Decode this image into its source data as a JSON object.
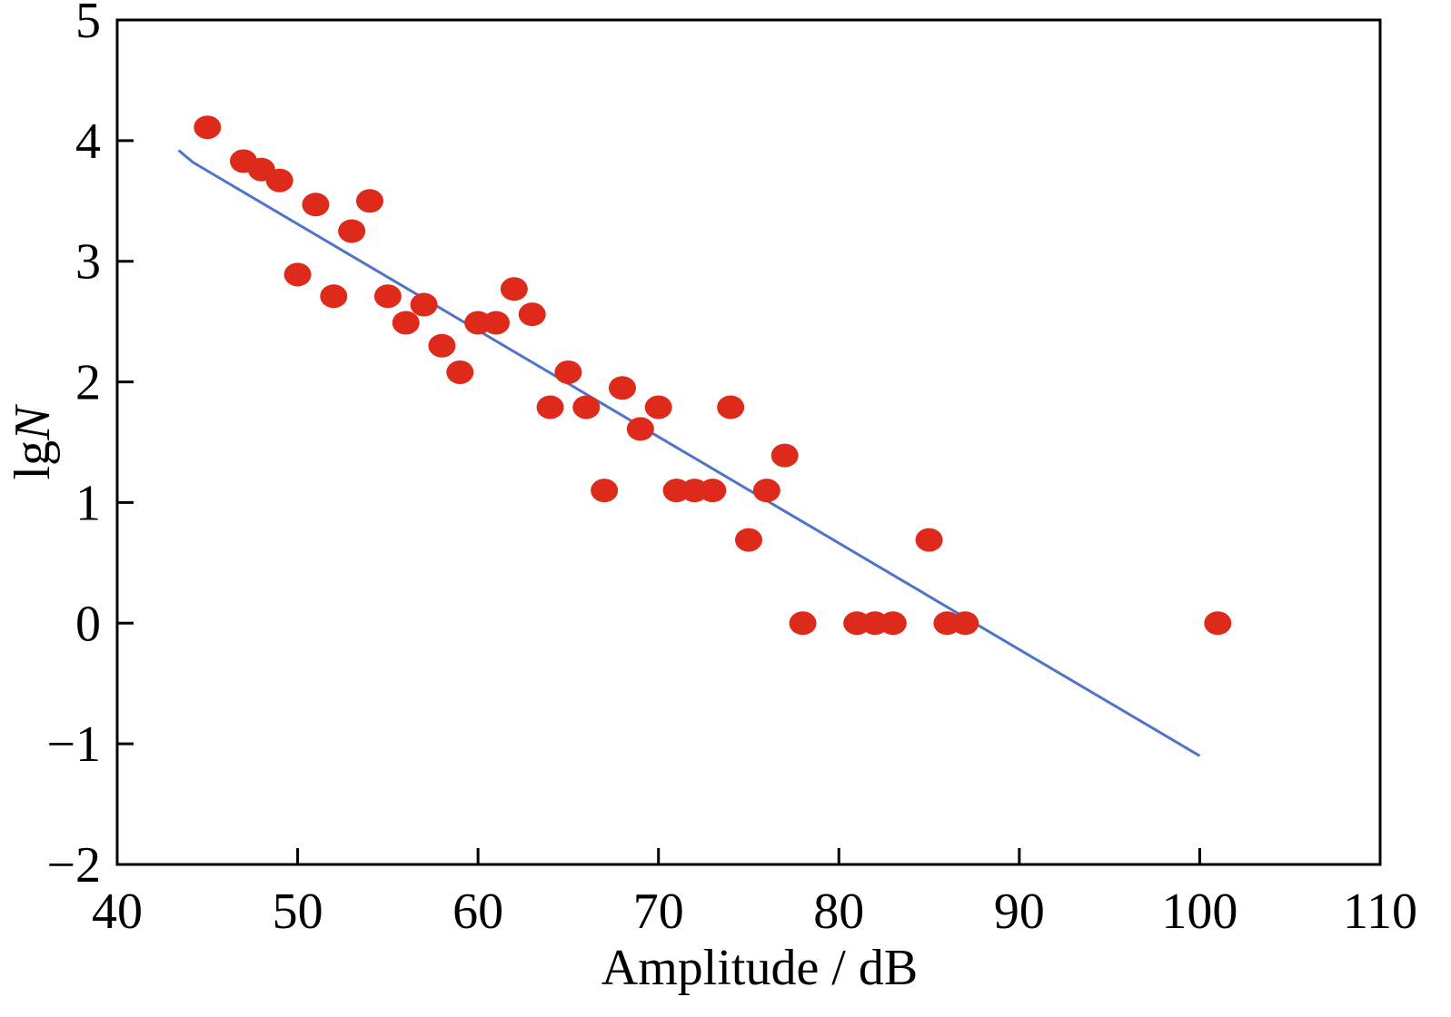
{
  "chart_data": {
    "type": "scatter",
    "xlabel": "Amplitude / dB",
    "ylabel": {
      "prefix": "lg",
      "italic": "N"
    },
    "xlim": [
      40,
      110
    ],
    "ylim": [
      -2,
      5
    ],
    "xticks": [
      40,
      50,
      60,
      70,
      80,
      90,
      100,
      110
    ],
    "yticks": [
      -2,
      -1,
      0,
      1,
      2,
      3,
      4,
      5
    ],
    "xtick_labels": [
      "40",
      "50",
      "60",
      "70",
      "80",
      "90",
      "100",
      "110"
    ],
    "ytick_labels": [
      "−2",
      "−1",
      "0",
      "1",
      "2",
      "3",
      "4",
      "5"
    ],
    "grid": false,
    "legend": false,
    "series": [
      {
        "kind": "points",
        "color": "#dd2a1b",
        "points": [
          [
            45,
            4.11
          ],
          [
            47,
            3.83
          ],
          [
            48,
            3.76
          ],
          [
            49,
            3.67
          ],
          [
            50,
            2.89
          ],
          [
            51,
            3.47
          ],
          [
            52,
            2.71
          ],
          [
            53,
            3.25
          ],
          [
            54,
            3.5
          ],
          [
            55,
            2.71
          ],
          [
            56,
            2.49
          ],
          [
            57,
            2.64
          ],
          [
            58,
            2.3
          ],
          [
            59,
            2.08
          ],
          [
            60,
            2.49
          ],
          [
            61,
            2.49
          ],
          [
            62,
            2.77
          ],
          [
            63,
            2.56
          ],
          [
            64,
            1.79
          ],
          [
            65,
            2.08
          ],
          [
            66,
            1.79
          ],
          [
            67,
            1.1
          ],
          [
            68,
            1.95
          ],
          [
            69,
            1.61
          ],
          [
            70,
            1.79
          ],
          [
            71,
            1.1
          ],
          [
            72,
            1.1
          ],
          [
            73,
            1.1
          ],
          [
            74,
            1.79
          ],
          [
            75,
            0.69
          ],
          [
            76,
            1.1
          ],
          [
            77,
            1.39
          ],
          [
            78,
            0.0
          ],
          [
            81,
            0.0
          ],
          [
            82,
            0.0
          ],
          [
            83,
            0.0
          ],
          [
            85,
            0.69
          ],
          [
            86,
            0.0
          ],
          [
            87,
            0.0
          ],
          [
            101,
            0.0
          ]
        ]
      },
      {
        "kind": "fit-line",
        "color": "#4f74c8",
        "points": [
          [
            43.4,
            3.92
          ],
          [
            44.2,
            3.82
          ],
          [
            100,
            -1.1
          ]
        ]
      }
    ]
  }
}
